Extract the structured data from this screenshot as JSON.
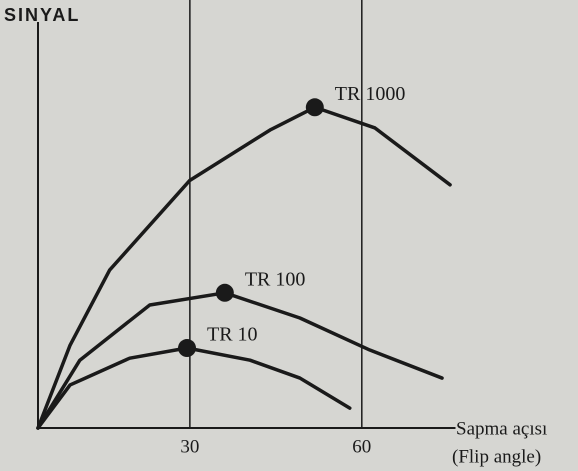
{
  "chart_data": {
    "type": "line",
    "ylabel": "SINYAL",
    "xlabel": [
      "Sapma açısı",
      "(Flip angle)"
    ],
    "xlim": [
      3.5,
      76
    ],
    "ylim": [
      0,
      100
    ],
    "xticks": [
      30,
      60
    ],
    "grid": true,
    "series": [
      {
        "name": "TR 1000",
        "color": "#1a1a1a",
        "x": [
          3.5,
          9.1,
          16,
          30,
          44,
          51.8,
          62.3,
          75.4
        ],
        "values": [
          0,
          20.4,
          38.9,
          61,
          73.4,
          79,
          73.9,
          59.9
        ],
        "peak": {
          "x": 51.8,
          "y": 79
        }
      },
      {
        "name": "TR 100",
        "color": "#1a1a1a",
        "x": [
          3.5,
          10.8,
          23,
          36.1,
          49.2,
          61.4,
          74
        ],
        "values": [
          0,
          16.7,
          30.3,
          33.3,
          27.1,
          19.2,
          12.3
        ],
        "peak": {
          "x": 36.1,
          "y": 33.3
        }
      },
      {
        "name": "TR 10",
        "color": "#1a1a1a",
        "x": [
          3.5,
          9.1,
          19.5,
          29.5,
          40.5,
          49.2,
          57.9
        ],
        "values": [
          0,
          10.6,
          17.2,
          19.7,
          16.7,
          12.3,
          4.9
        ],
        "peak": {
          "x": 29.5,
          "y": 19.7
        }
      }
    ]
  }
}
